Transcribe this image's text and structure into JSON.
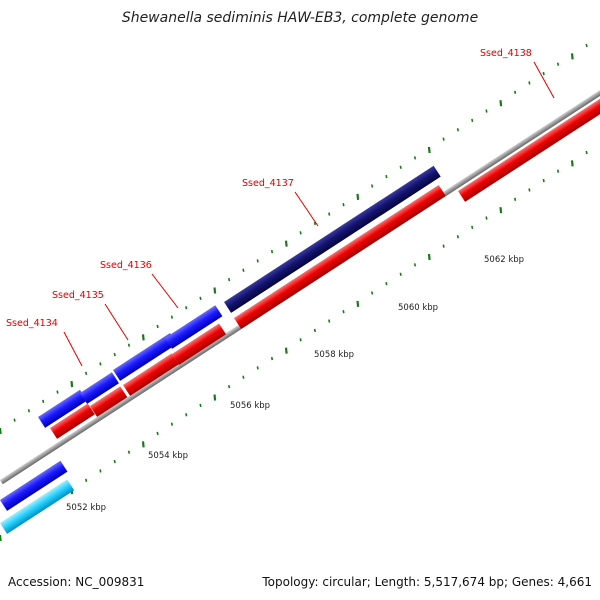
{
  "header": {
    "title": "Shewanella sediminis HAW-EB3, complete genome"
  },
  "footer": {
    "accession": "Accession: NC_009831",
    "summary": "Topology: circular; Length: 5,517,674 bp; Genes: 4,661"
  },
  "genes": [
    {
      "label": "Ssed_4134"
    },
    {
      "label": "Ssed_4135"
    },
    {
      "label": "Ssed_4136"
    },
    {
      "label": "Ssed_4137"
    },
    {
      "label": "Ssed_4138"
    }
  ],
  "scale_labels": [
    "5052 kbp",
    "5054 kbp",
    "5056 kbp",
    "5058 kbp",
    "5060 kbp",
    "5062 kbp"
  ],
  "colors": {
    "forward_gene": "#e00000",
    "reverse_gene": "#1a1aff",
    "reverse_gene_dark": "#0d0d6e",
    "reverse_gene_light": "#2ad2ff",
    "backbone": "#999999",
    "tick": "#1a7a1a"
  }
}
